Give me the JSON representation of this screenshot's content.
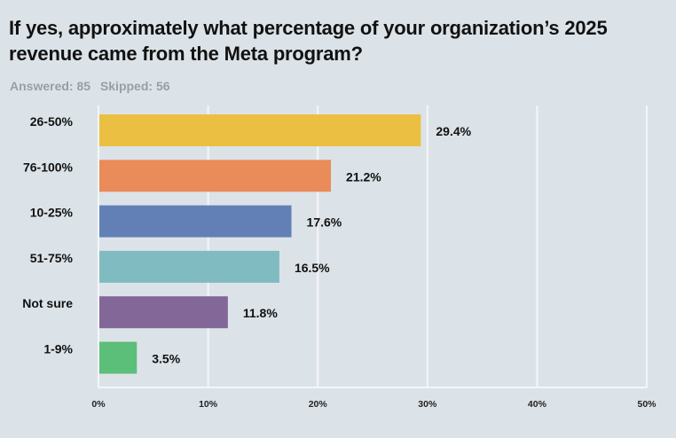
{
  "header": {
    "title": "If yes, approximately what percentage of your organization’s 2025 revenue came from the Meta program?",
    "answered": "Answered: 85",
    "skipped": "Skipped: 56"
  },
  "colors": {
    "background": "#dce3e8",
    "gridline": "#f4f6f7"
  },
  "chart_data": {
    "type": "bar",
    "orientation": "horizontal",
    "title": "If yes, approximately what percentage of your organization’s 2025 revenue came from the Meta program?",
    "xlabel": "",
    "ylabel": "",
    "categories": [
      "26-50%",
      "76-100%",
      "10-25%",
      "51-75%",
      "Not sure",
      "1-9%"
    ],
    "values": [
      29.4,
      21.2,
      17.6,
      16.5,
      11.8,
      3.5
    ],
    "value_labels": [
      "29.4%",
      "21.2%",
      "17.6%",
      "16.5%",
      "11.8%",
      "3.5%"
    ],
    "bar_colors": [
      "#ebc042",
      "#e98c59",
      "#6380b6",
      "#80bbc2",
      "#826798",
      "#5cbf79"
    ],
    "xlim": [
      0,
      50
    ],
    "x_ticks": [
      0,
      10,
      20,
      30,
      40,
      50
    ],
    "x_tick_labels": [
      "0%",
      "10%",
      "20%",
      "30%",
      "40%",
      "50%"
    ],
    "grid": true,
    "legend": "none"
  }
}
